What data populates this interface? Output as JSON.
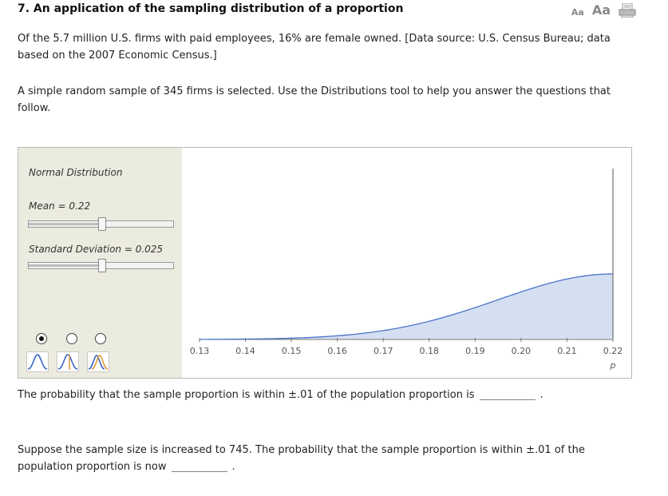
{
  "question": {
    "number_title": "7. An application of the sampling distribution of a proportion",
    "font_small_label": "Aa",
    "font_large_label": "Aa"
  },
  "intro": {
    "line1": "Of the 5.7 million U.S. firms with paid employees, 16% are female owned. [Data source: U.S. Census Bureau; data",
    "line2": "based on the 2007 Economic Census.]",
    "line3": "A simple random sample of 345 firms is selected. Use the Distributions tool to help you answer the questions that",
    "line4": "follow."
  },
  "tool": {
    "distribution_name": "Normal Distribution",
    "mean_label": "Mean = 0.22",
    "mean_slider_value": 0.5,
    "sd_label": "Standard Deviation = 0.025",
    "sd_slider_value": 0.5,
    "selected_mode": 0,
    "modes": [
      "single-curve",
      "left-tail",
      "two-curves"
    ]
  },
  "chart_data": {
    "type": "area",
    "curve": "normal",
    "mean": 0.22,
    "sd": 0.025,
    "x_range": [
      0.13,
      0.22
    ],
    "x_ticks": [
      "0.13",
      "0.14",
      "0.15",
      "0.16",
      "0.17",
      "0.18",
      "0.19",
      "0.20",
      "0.21",
      "0.22"
    ],
    "x_axis_symbol": "p",
    "marker_x": 0.22,
    "fill_color": "#d5dff2",
    "line_color": "#4a74c9"
  },
  "q1": {
    "prefix": "The probability that the sample proportion is within ±.01 of the population proportion is",
    "suffix": "."
  },
  "q2": {
    "line1": "Suppose the sample size is increased to 745. The probability that the sample proportion is within ±.01 of the",
    "line2_prefix": "population proportion is now",
    "suffix": "."
  }
}
